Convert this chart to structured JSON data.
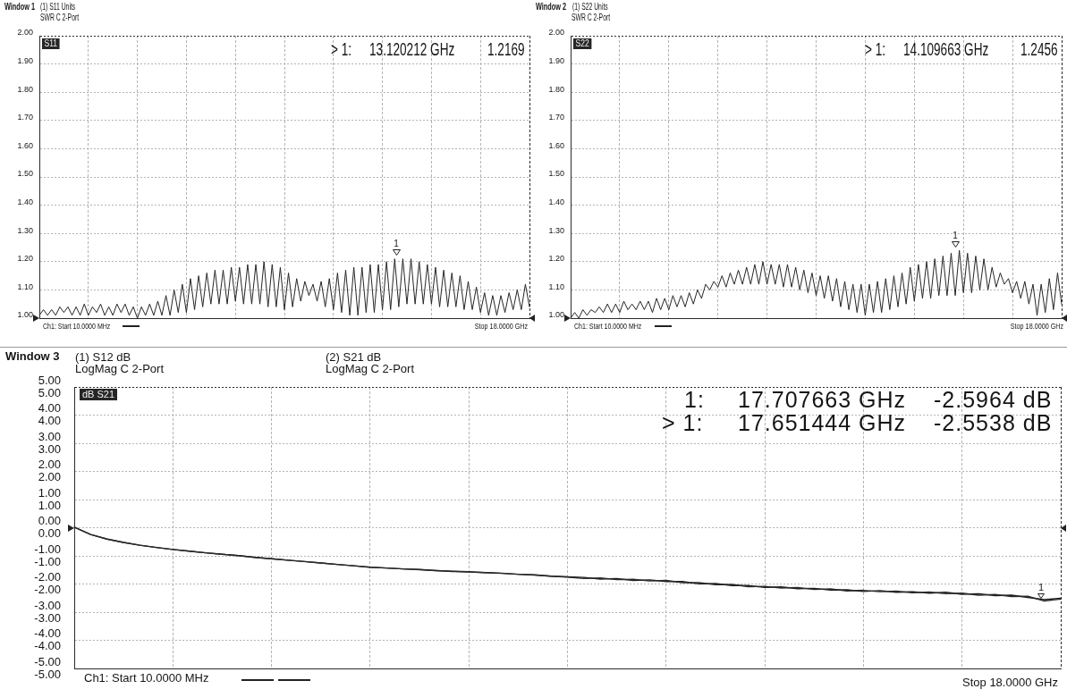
{
  "chart_data": [
    {
      "type": "line",
      "title": "Window 1",
      "annotations": [
        "(1) S11 Units",
        "SWR C 2-Port",
        "S11",
        "> 1:",
        "13.120212 GHz",
        "1.2169",
        "Ch1: Start 10.0000 MHz",
        "Stop 18.0000 GHz",
        {
          "text": "1",
          "y": 1.2169
        }
      ],
      "categories": [
        null,
        null,
        null,
        null,
        null,
        null,
        null,
        null,
        null,
        null,
        null,
        null,
        null,
        null,
        null,
        null,
        null,
        null,
        null,
        null,
        null,
        null,
        null,
        null,
        null,
        null,
        null,
        null,
        null,
        null,
        null,
        null,
        null,
        null,
        null,
        null,
        null,
        null,
        null,
        null,
        null,
        null,
        null,
        null,
        null,
        null,
        null,
        null,
        null,
        null,
        null,
        null,
        null,
        null,
        null,
        null,
        null,
        null,
        null,
        null,
        null,
        null,
        null,
        null,
        null,
        null,
        null,
        null,
        null,
        null,
        null,
        null,
        null,
        null,
        null,
        null,
        null,
        null,
        null,
        null,
        null,
        null,
        null,
        null,
        null,
        null,
        null,
        null,
        null,
        null,
        null,
        null,
        null,
        null,
        null,
        null,
        null,
        null,
        null,
        null,
        null,
        null,
        null,
        null,
        null,
        null,
        null,
        null,
        null,
        null,
        null,
        null,
        null,
        null,
        null,
        null,
        null,
        null,
        null,
        null,
        null
      ],
      "values": [
        1.01,
        1.03,
        1.01,
        1.03,
        1.01,
        1.04,
        1.02,
        1.04,
        1.01,
        1.04,
        1.01,
        1.05,
        1.01,
        1.04,
        1.02,
        1.05,
        1.01,
        1.04,
        1.01,
        1.05,
        1.02,
        1.05,
        1.01,
        1.04,
        1,
        1.04,
        1.01,
        1.05,
        1.01,
        1.06,
        1.01,
        1.08,
        1.01,
        1.1,
        1.02,
        1.12,
        1.02,
        1.14,
        1.03,
        1.15,
        1.04,
        1.16,
        1.05,
        1.17,
        1.05,
        1.17,
        1.05,
        1.18,
        1.06,
        1.18,
        1.05,
        1.19,
        1.05,
        1.19,
        1.05,
        1.2,
        1.04,
        1.19,
        1.04,
        1.18,
        1.03,
        1.16,
        1.04,
        1.14,
        1.06,
        1.13,
        1.08,
        1.12,
        1.06,
        1.13,
        1.04,
        1.14,
        1.03,
        1.16,
        1.02,
        1.17,
        1.01,
        1.18,
        1.01,
        1.18,
        1.02,
        1.19,
        1.02,
        1.19,
        1.03,
        1.2,
        1.03,
        1.21,
        1.04,
        1.21,
        1.05,
        1.21,
        1.05,
        1.2,
        1.05,
        1.19,
        1.05,
        1.18,
        1.04,
        1.17,
        1.04,
        1.16,
        1.04,
        1.15,
        1.03,
        1.13,
        1.03,
        1.11,
        1.02,
        1.09,
        1.01,
        1.08,
        1.01,
        1.08,
        1.02,
        1.09,
        1.03,
        1.1,
        1.03,
        1.12,
        1.04
      ],
      "color": "#262626",
      "ylim": [
        1,
        2
      ],
      "yticks": [
        {
          "value": 1,
          "label": "1.00"
        },
        {
          "value": 1.1,
          "label": "1.10"
        },
        {
          "value": 1.2,
          "label": "1.20"
        },
        {
          "value": 1.3,
          "label": "1.30"
        },
        {
          "value": 1.4,
          "label": "1.40"
        },
        {
          "value": 1.5,
          "label": "1.50"
        },
        {
          "value": 1.6,
          "label": "1.60"
        },
        {
          "value": 1.7,
          "label": "1.70"
        },
        {
          "value": 1.8,
          "label": "1.80"
        },
        {
          "value": 1.9,
          "label": "1.90"
        },
        {
          "value": 2,
          "label": "2.00"
        }
      ],
      "tick_labels": "y",
      "grid": true
    },
    {
      "type": "line",
      "title": "Window 2",
      "annotations": [
        "(1) S22 Units",
        "SWR C 2-Port",
        "S22",
        "> 1:",
        "14.109663 GHz",
        "1.2456",
        "Ch1: Start 10.0000 MHz",
        "Stop 18.0000 GHz",
        {
          "text": "1",
          "y": 1.2456
        }
      ],
      "categories": [
        null,
        null,
        null,
        null,
        null,
        null,
        null,
        null,
        null,
        null,
        null,
        null,
        null,
        null,
        null,
        null,
        null,
        null,
        null,
        null,
        null,
        null,
        null,
        null,
        null,
        null,
        null,
        null,
        null,
        null,
        null,
        null,
        null,
        null,
        null,
        null,
        null,
        null,
        null,
        null,
        null,
        null,
        null,
        null,
        null,
        null,
        null,
        null,
        null,
        null,
        null,
        null,
        null,
        null,
        null,
        null,
        null,
        null,
        null,
        null,
        null,
        null,
        null,
        null,
        null,
        null,
        null,
        null,
        null,
        null,
        null,
        null,
        null,
        null,
        null,
        null,
        null,
        null,
        null,
        null,
        null,
        null,
        null,
        null,
        null,
        null,
        null,
        null,
        null,
        null,
        null,
        null,
        null,
        null,
        null,
        null,
        null,
        null,
        null,
        null,
        null,
        null,
        null,
        null,
        null,
        null,
        null,
        null,
        null,
        null,
        null,
        null,
        null,
        null,
        null,
        null,
        null,
        null,
        null,
        null,
        null
      ],
      "values": [
        1,
        1.02,
        1,
        1.03,
        1.01,
        1.03,
        1.02,
        1.04,
        1.02,
        1.05,
        1.02,
        1.05,
        1.02,
        1.06,
        1.03,
        1.05,
        1.03,
        1.06,
        1.03,
        1.06,
        1.02,
        1.07,
        1.03,
        1.07,
        1.03,
        1.08,
        1.04,
        1.08,
        1.04,
        1.09,
        1.05,
        1.1,
        1.07,
        1.12,
        1.1,
        1.13,
        1.11,
        1.15,
        1.11,
        1.16,
        1.12,
        1.17,
        1.12,
        1.18,
        1.12,
        1.19,
        1.12,
        1.2,
        1.12,
        1.19,
        1.12,
        1.19,
        1.11,
        1.19,
        1.11,
        1.18,
        1.1,
        1.17,
        1.09,
        1.16,
        1.08,
        1.15,
        1.07,
        1.15,
        1.06,
        1.14,
        1.04,
        1.13,
        1.03,
        1.12,
        1.02,
        1.12,
        1.01,
        1.12,
        1.02,
        1.13,
        1.02,
        1.14,
        1.03,
        1.15,
        1.04,
        1.16,
        1.05,
        1.18,
        1.06,
        1.19,
        1.07,
        1.2,
        1.07,
        1.21,
        1.08,
        1.22,
        1.08,
        1.23,
        1.08,
        1.24,
        1.09,
        1.23,
        1.09,
        1.22,
        1.1,
        1.21,
        1.1,
        1.18,
        1.11,
        1.16,
        1.12,
        1.14,
        1.09,
        1.13,
        1.07,
        1.13,
        1.05,
        1.12,
        1.01,
        1.12,
        1.02,
        1.14,
        1.03,
        1.16,
        1.05
      ],
      "color": "#262626",
      "ylim": [
        1,
        2
      ],
      "yticks": [
        {
          "value": 1,
          "label": "1.00"
        },
        {
          "value": 1.1,
          "label": "1.10"
        },
        {
          "value": 1.2,
          "label": "1.20"
        },
        {
          "value": 1.3,
          "label": "1.30"
        },
        {
          "value": 1.4,
          "label": "1.40"
        },
        {
          "value": 1.5,
          "label": "1.50"
        },
        {
          "value": 1.6,
          "label": "1.60"
        },
        {
          "value": 1.7,
          "label": "1.70"
        },
        {
          "value": 1.8,
          "label": "1.80"
        },
        {
          "value": 1.9,
          "label": "1.90"
        },
        {
          "value": 2,
          "label": "2.00"
        }
      ],
      "tick_labels": "y",
      "grid": true
    },
    {
      "type": "line",
      "title": "Window 3",
      "annotations": [
        "(1) S12 dB",
        "LogMag C 2-Port",
        "(2) S21 dB",
        "LogMag C 2-Port",
        "dB S21",
        "1:",
        "17.707663 GHz",
        "-2.5964 dB",
        "> 1:",
        "17.651444 GHz",
        "-2.5538 dB",
        "Ch1: Start 10.0000 MHz",
        "Stop 18.0000 GHz",
        {
          "text": "1",
          "y": -2.5538
        }
      ],
      "categories": [
        null,
        null,
        null,
        null,
        null,
        null,
        null,
        null,
        null,
        null,
        null,
        null,
        null,
        null,
        null,
        null,
        null,
        null,
        null,
        null,
        null,
        null,
        null,
        null,
        null,
        null,
        null,
        null,
        null,
        null,
        null,
        null,
        null,
        null,
        null,
        null,
        null,
        null,
        null,
        null,
        null,
        null,
        null,
        null,
        null,
        null,
        null,
        null,
        null,
        null,
        null,
        null,
        null,
        null,
        null,
        null,
        null,
        null,
        null,
        null,
        null
      ],
      "series": [
        {
          "color": "#2a2a2a",
          "values": [
            0.02,
            -0.24,
            -0.4,
            -0.52,
            -0.62,
            -0.7,
            -0.77,
            -0.83,
            -0.89,
            -0.94,
            -0.99,
            -1.05,
            -1.1,
            -1.15,
            -1.2,
            -1.25,
            -1.3,
            -1.35,
            -1.4,
            -1.43,
            -1.46,
            -1.49,
            -1.52,
            -1.54,
            -1.56,
            -1.59,
            -1.62,
            -1.65,
            -1.68,
            -1.72,
            -1.75,
            -1.8,
            -1.78,
            -1.84,
            -1.83,
            -1.89,
            -1.87,
            -1.95,
            -1.95,
            -2.02,
            -2.01,
            -2.09,
            -2.08,
            -2.14,
            -2.12,
            -2.19,
            -2.17,
            -2.24,
            -2.22,
            -2.27,
            -2.25,
            -2.31,
            -2.28,
            -2.34,
            -2.32,
            -2.39,
            -2.37,
            -2.44,
            -2.43,
            -2.6,
            -2.53
          ]
        },
        {
          "color": "#1a1a1a",
          "values": [
            0.02,
            -0.24,
            -0.4,
            -0.52,
            -0.62,
            -0.7,
            -0.77,
            -0.83,
            -0.89,
            -0.94,
            -0.99,
            -1.05,
            -1.1,
            -1.15,
            -1.2,
            -1.25,
            -1.3,
            -1.35,
            -1.4,
            -1.43,
            -1.46,
            -1.48,
            -1.52,
            -1.55,
            -1.57,
            -1.59,
            -1.61,
            -1.65,
            -1.67,
            -1.72,
            -1.74,
            -1.76,
            -1.82,
            -1.8,
            -1.87,
            -1.85,
            -1.91,
            -1.91,
            -1.99,
            -1.98,
            -2.05,
            -2.05,
            -2.12,
            -2.1,
            -2.16,
            -2.15,
            -2.21,
            -2.2,
            -2.26,
            -2.23,
            -2.29,
            -2.27,
            -2.32,
            -2.29,
            -2.36,
            -2.34,
            -2.41,
            -2.39,
            -2.47,
            -2.55,
            -2.5
          ]
        }
      ],
      "ylim": [
        -5,
        5
      ],
      "yticks": [
        {
          "value": -5,
          "label": "-5.00"
        },
        {
          "value": -4,
          "label": "-4.00"
        },
        {
          "value": -3,
          "label": "-3.00"
        },
        {
          "value": -2,
          "label": "-2.00"
        },
        {
          "value": -1,
          "label": "-1.00"
        },
        {
          "value": 0,
          "label": "0.00"
        },
        {
          "value": 1,
          "label": "1.00"
        },
        {
          "value": 2,
          "label": "2.00"
        },
        {
          "value": 3,
          "label": "3.00"
        },
        {
          "value": 4,
          "label": "4.00"
        },
        {
          "value": 5,
          "label": "5.00"
        }
      ],
      "tick_labels": "y",
      "grid": true
    }
  ]
}
